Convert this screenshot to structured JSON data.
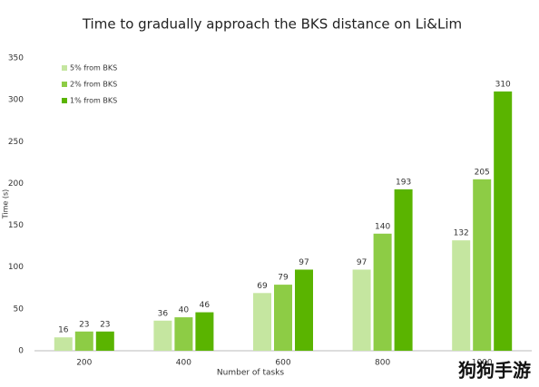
{
  "chart_data": {
    "type": "bar",
    "title": "Time to gradually approach the BKS distance on Li&Lim",
    "x_label": "Number of tasks",
    "y_label": "Time (s)",
    "categories": [
      "200",
      "400",
      "600",
      "800",
      "1000"
    ],
    "series": [
      {
        "name": "5% from BKS",
        "color": "#c5e6a0",
        "values": [
          16,
          36,
          69,
          97,
          132
        ]
      },
      {
        "name": "2% from BKS",
        "color": "#8dcc45",
        "values": [
          23,
          40,
          79,
          140,
          205
        ]
      },
      {
        "name": "1% from BKS",
        "color": "#5ab400",
        "values": [
          23,
          46,
          97,
          193,
          310
        ]
      }
    ],
    "ylim": [
      0,
      350
    ],
    "yticks": [
      0,
      50,
      100,
      150,
      200,
      250,
      300,
      350
    ],
    "legend": "top-left",
    "watermark": "狗狗手游"
  }
}
